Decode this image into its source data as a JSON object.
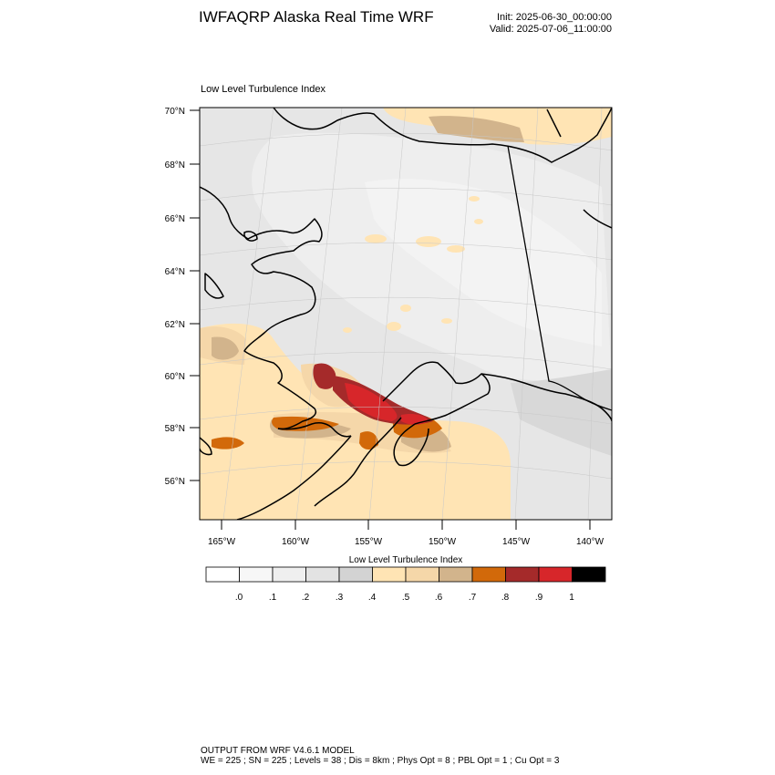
{
  "header": {
    "title": "IWFAQRP Alaska Real Time WRF",
    "init": "Init: 2025-06-30_00:00:00",
    "valid": "Valid: 2025-07-06_11:00:00"
  },
  "panel": {
    "title": "Low Level Turbulence Index"
  },
  "axes": {
    "lat_labels": [
      "70°N",
      "68°N",
      "66°N",
      "64°N",
      "62°N",
      "60°N",
      "58°N",
      "56°N"
    ],
    "lon_labels": [
      "165°W",
      "160°W",
      "155°W",
      "150°W",
      "145°W",
      "140°W"
    ]
  },
  "colorbar": {
    "title": "Low Level Turbulence Index",
    "colors": [
      "#ffffff",
      "#f7f7f7",
      "#efefef",
      "#e3e3e3",
      "#d3d3d3",
      "#ffe4b4",
      "#f5d7a9",
      "#d2b48c",
      "#d2690a",
      "#a52a2a",
      "#d7262a",
      "#000000"
    ],
    "labels": [
      ".0",
      ".1",
      ".2",
      ".3",
      ".4",
      ".5",
      ".6",
      ".7",
      ".8",
      ".9",
      "1"
    ]
  },
  "footer": {
    "line1": "OUTPUT FROM WRF V4.6.1 MODEL",
    "line2": "WE = 225 ; SN = 225 ; Levels = 38 ; Dis = 8km ; Phys Opt = 8 ; PBL Opt = 1 ; Cu Opt = 3"
  }
}
